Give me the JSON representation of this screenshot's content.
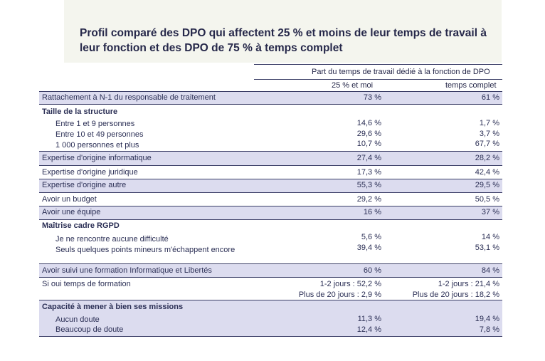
{
  "title": "Profil comparé des DPO qui affectent 25 % et moins de leur temps de travail à leur fonction et des DPO de 75 % à temps complet",
  "table": {
    "group_header": "Part du temps de travail dédié à la fonction de DPO",
    "col1_header": "25 % et moi",
    "col2_header": "temps complet",
    "rows": [
      {
        "label": "Rattachement à N-1 du responsable de traitement",
        "v1": "73 %",
        "v2": "61 %"
      },
      {
        "label": "Taille de la structure",
        "subs": [
          "Entre 1 et 9 personnes",
          "Entre 10 et 49 personnes",
          "1 000 personnes et plus"
        ],
        "v1": [
          "14,6 %",
          "29,6 %",
          "10,7 %"
        ],
        "v2": [
          "1,7 %",
          "3,7 %",
          "67,7 %"
        ]
      },
      {
        "label": "Expertise d'origine informatique",
        "v1": "27,4 %",
        "v2": "28,2 %"
      },
      {
        "label": "Expertise d'origine juridique",
        "v1": "17,3 %",
        "v2": "42,4 %"
      },
      {
        "label": "Expertise d'origine autre",
        "v1": "55,3 %",
        "v2": "29,5 %"
      },
      {
        "label": "Avoir un budget",
        "v1": "29,2 %",
        "v2": "50,5 %"
      },
      {
        "label": "Avoir une équipe",
        "v1": "16 %",
        "v2": "37 %"
      },
      {
        "label": "Maîtrise cadre RGPD",
        "subs": [
          "Je ne rencontre aucune difficulté",
          "Seuls quelques points mineurs m'échappent encore"
        ],
        "v1": [
          "5,6 %",
          "39,4 %"
        ],
        "v2": [
          "14 %",
          "53,1 %"
        ]
      },
      {
        "label": "Avoir suivi une formation Informatique et Libertés",
        "v1": "60 %",
        "v2": "84 %"
      },
      {
        "label": "Si oui temps de formation",
        "v1": [
          "1-2 jours : 52,2 %",
          "Plus de 20 jours : 2,9 %"
        ],
        "v2": [
          "1-2 jours : 21,4 %",
          "Plus de 20 jours : 18,2 %"
        ]
      },
      {
        "label": "Capacité à mener à bien ses missions",
        "subs": [
          "Aucun doute",
          "Beaucoup de doute"
        ],
        "v1": [
          "11,3 %",
          "12,4 %"
        ],
        "v2": [
          "19,4 %",
          "7,8 %"
        ]
      }
    ]
  }
}
